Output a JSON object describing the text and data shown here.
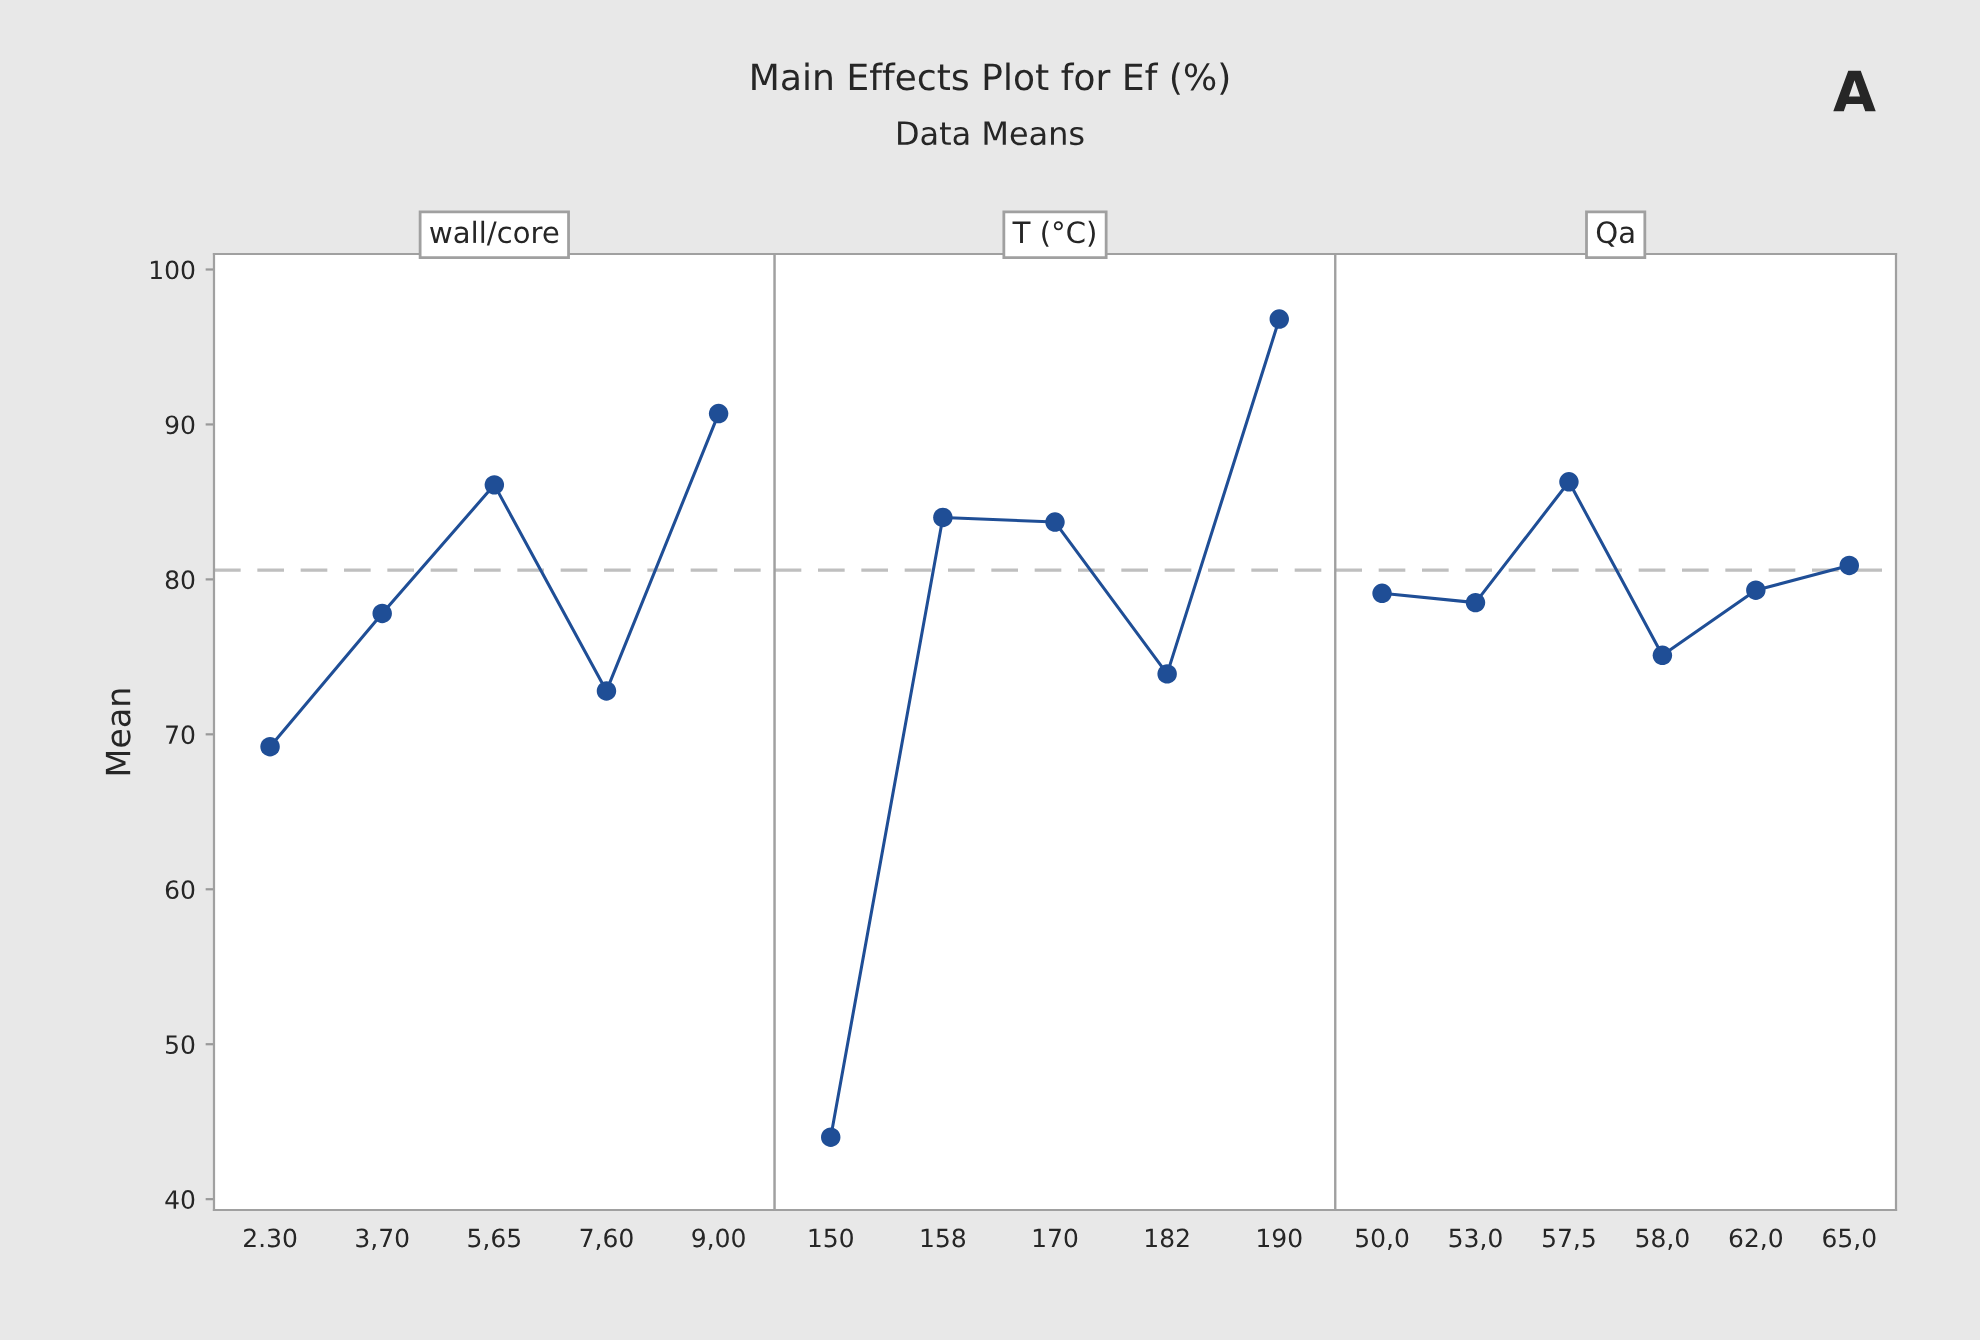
{
  "chart_data": [
    {
      "type": "line",
      "title": "wall/core",
      "ylabel": "Mean",
      "categories": [
        "2.30",
        "3,70",
        "5,65",
        "7,60",
        "9,00"
      ],
      "series": [
        {
          "color": "#1f4e96",
          "values": [
            69.2,
            77.8,
            86.1,
            72.8,
            90.7
          ]
        }
      ],
      "ylim": [
        39.3,
        101
      ],
      "yticks": [
        40,
        50,
        60,
        70,
        80,
        90,
        100
      ],
      "marker": "circle",
      "line_style": "solid",
      "grid": false,
      "ref_lines": [
        {
          "axis": "y",
          "value": 80.6,
          "color": "#bfbfbf",
          "line_style": "dashed"
        }
      ],
      "annotations": [
        "Main Effects Plot for Ef (%)",
        "Data Means",
        "A"
      ]
    },
    {
      "type": "line",
      "title": "T (°C)",
      "categories": [
        "150",
        "158",
        "170",
        "182",
        "190"
      ],
      "series": [
        {
          "color": "#1f4e96",
          "values": [
            44.0,
            84.0,
            83.7,
            73.9,
            96.8
          ]
        }
      ],
      "ylim": [
        39.3,
        101
      ],
      "yticks": [
        40,
        50,
        60,
        70,
        80,
        90,
        100
      ],
      "tick_labels": "x",
      "marker": "circle",
      "line_style": "solid",
      "grid": false,
      "ref_lines": [
        {
          "axis": "y",
          "value": 80.6,
          "color": "#bfbfbf",
          "line_style": "dashed"
        }
      ]
    },
    {
      "type": "line",
      "title": "Qa",
      "categories": [
        "50,0",
        "53,0",
        "57,5",
        "58,0",
        "62,0",
        "65,0"
      ],
      "series": [
        {
          "color": "#1f4e96",
          "values": [
            79.1,
            78.5,
            86.3,
            75.1,
            79.3,
            80.9
          ]
        }
      ],
      "ylim": [
        39.3,
        101
      ],
      "yticks": [
        40,
        50,
        60,
        70,
        80,
        90,
        100
      ],
      "tick_labels": "x",
      "marker": "circle",
      "line_style": "solid",
      "grid": false,
      "ref_lines": [
        {
          "axis": "y",
          "value": 80.6,
          "color": "#bfbfbf",
          "line_style": "dashed"
        }
      ]
    }
  ]
}
